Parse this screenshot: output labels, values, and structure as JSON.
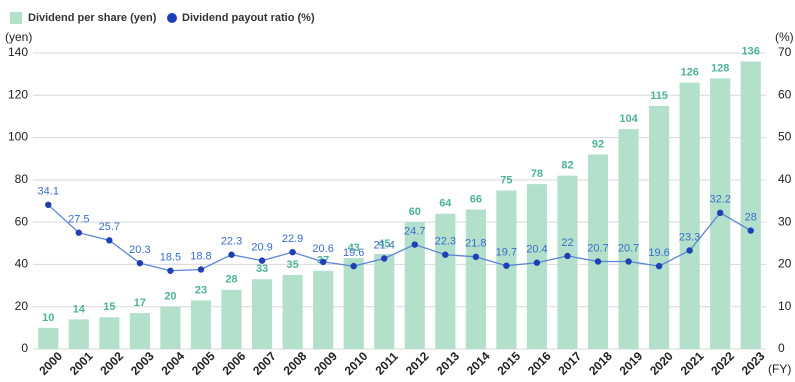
{
  "chart_data": {
    "type": "bar",
    "categories": [
      "2000",
      "2001",
      "2002",
      "2003",
      "2004",
      "2005",
      "2006",
      "2007",
      "2008",
      "2009",
      "2010",
      "2011",
      "2012",
      "2013",
      "2014",
      "2015",
      "2016",
      "2017",
      "2018",
      "2019",
      "2020",
      "2021",
      "2022",
      "2023"
    ],
    "series": [
      {
        "name": "Dividend per share (yen)",
        "type": "bar",
        "color": "#b3e0cb",
        "label_color": "#4db39b",
        "values": [
          10,
          14,
          15,
          17,
          20,
          23,
          28,
          33,
          35,
          37,
          43,
          45,
          60,
          64,
          66,
          75,
          78,
          82,
          92,
          104,
          115,
          126,
          128,
          136
        ]
      },
      {
        "name": "Dividend payout ratio (%)",
        "type": "line",
        "axis": "y2",
        "color": "#1f3fb5",
        "line_color": "#5b85d8",
        "label_color": "#3a6ccc",
        "values": [
          34.1,
          27.5,
          25.7,
          20.3,
          18.5,
          18.8,
          22.3,
          20.9,
          22.9,
          20.6,
          19.6,
          21.4,
          24.7,
          22.3,
          21.8,
          19.7,
          20.4,
          22,
          20.7,
          20.7,
          19.6,
          23.3,
          32.2,
          28
        ]
      }
    ],
    "y_label": "(yen)",
    "y2_label": "(%)",
    "x_label": "(FY)",
    "ylim": [
      0,
      140
    ],
    "yticks": [
      0,
      20,
      40,
      60,
      80,
      100,
      120,
      140
    ],
    "y2lim": [
      0,
      70
    ],
    "y2ticks": [
      0,
      10,
      20,
      30,
      40,
      50,
      60,
      70
    ],
    "grid": true,
    "legend": "top-left"
  }
}
